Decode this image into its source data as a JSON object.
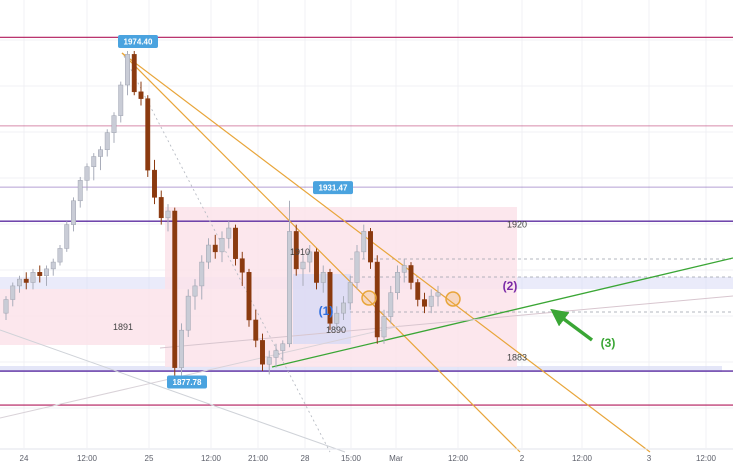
{
  "chart_data": {
    "type": "candlestick",
    "instrument_note": "",
    "x_ticks": [
      "24",
      "12:00",
      "25",
      "12:00",
      "21:00",
      "28",
      "15:00",
      "Mar",
      "12:00",
      "2",
      "12:00",
      "3",
      "12:00"
    ],
    "y_range": [
      1862,
      1982
    ],
    "colors": {
      "bull": "#c9ccd6",
      "bear": "#8b3a0f",
      "magenta_line": "#b0185a",
      "purple_line": "#5b2ca0",
      "trend_green": "#3aa635",
      "trend_orange": "#e8a53a",
      "zone_pink": "#fbe3ea",
      "zone_blue": "#d9dbf5",
      "flag_blue": "#4aa3df",
      "label_blue": "#2f6fe0",
      "label_purple": "#7a2aa6"
    },
    "horizontal_levels": [
      {
        "price": 1979,
        "kind": "magenta"
      },
      {
        "price": 1953,
        "kind": "magenta-light"
      },
      {
        "price": 1935,
        "kind": "purple-light"
      },
      {
        "price": 1925,
        "kind": "purple"
      },
      {
        "price": 1881,
        "kind": "purple"
      },
      {
        "price": 1871,
        "kind": "magenta"
      }
    ],
    "level_labels": [
      {
        "text": "1920",
        "price": 1924
      },
      {
        "text": "1910",
        "price": 1916
      },
      {
        "text": "1891",
        "price": 1894
      },
      {
        "text": "1890",
        "price": 1893
      },
      {
        "text": "1883",
        "price": 1885
      }
    ],
    "price_flags": [
      {
        "text": "1974.40",
        "price": 1974.4
      },
      {
        "text": "1931.47",
        "price": 1931.47
      },
      {
        "text": "1877.78",
        "price": 1877.78
      }
    ],
    "annotations": [
      {
        "text": "(1)",
        "color_key": "label_blue"
      },
      {
        "text": "(2)",
        "color_key": "label_purple"
      },
      {
        "text": "(3)",
        "color_key": "trend_green"
      }
    ],
    "candles": [
      [
        1898,
        1903,
        1896,
        1902
      ],
      [
        1902,
        1907,
        1900,
        1906
      ],
      [
        1906,
        1909,
        1904,
        1908
      ],
      [
        1908,
        1910,
        1905,
        1907
      ],
      [
        1907,
        1911,
        1905,
        1910
      ],
      [
        1910,
        1912,
        1907,
        1909
      ],
      [
        1909,
        1912,
        1906,
        1911
      ],
      [
        1911,
        1914,
        1909,
        1913
      ],
      [
        1913,
        1918,
        1912,
        1917
      ],
      [
        1917,
        1925,
        1916,
        1924
      ],
      [
        1924,
        1932,
        1922,
        1931
      ],
      [
        1931,
        1938,
        1929,
        1937
      ],
      [
        1937,
        1942,
        1934,
        1941
      ],
      [
        1941,
        1945,
        1937,
        1944
      ],
      [
        1944,
        1947,
        1940,
        1946
      ],
      [
        1946,
        1952,
        1944,
        1951
      ],
      [
        1951,
        1957,
        1948,
        1956
      ],
      [
        1956,
        1966,
        1954,
        1965
      ],
      [
        1965,
        1975,
        1962,
        1974
      ],
      [
        1974,
        1975,
        1962,
        1963
      ],
      [
        1963,
        1966,
        1959,
        1961
      ],
      [
        1961,
        1962,
        1938,
        1940
      ],
      [
        1940,
        1943,
        1930,
        1932
      ],
      [
        1932,
        1934,
        1924,
        1926
      ],
      [
        1926,
        1930,
        1922,
        1928
      ],
      [
        1928,
        1929,
        1878,
        1882
      ],
      [
        1882,
        1895,
        1879,
        1893
      ],
      [
        1893,
        1905,
        1891,
        1903
      ],
      [
        1903,
        1908,
        1899,
        1906
      ],
      [
        1906,
        1915,
        1902,
        1913
      ],
      [
        1913,
        1920,
        1911,
        1918
      ],
      [
        1918,
        1921,
        1914,
        1916
      ],
      [
        1916,
        1922,
        1913,
        1920
      ],
      [
        1920,
        1925,
        1917,
        1923
      ],
      [
        1923,
        1924,
        1912,
        1914
      ],
      [
        1914,
        1916,
        1906,
        1910
      ],
      [
        1910,
        1911,
        1894,
        1896
      ],
      [
        1896,
        1899,
        1888,
        1890
      ],
      [
        1890,
        1892,
        1881,
        1883
      ],
      [
        1883,
        1887,
        1880,
        1885
      ],
      [
        1885,
        1889,
        1882,
        1887
      ],
      [
        1887,
        1890,
        1884,
        1889
      ],
      [
        1889,
        1931,
        1888,
        1922
      ],
      [
        1922,
        1924,
        1909,
        1911
      ],
      [
        1911,
        1915,
        1906,
        1913
      ],
      [
        1913,
        1918,
        1910,
        1916
      ],
      [
        1916,
        1917,
        1905,
        1907
      ],
      [
        1907,
        1912,
        1904,
        1910
      ],
      [
        1910,
        1911,
        1893,
        1895
      ],
      [
        1895,
        1900,
        1893,
        1898
      ],
      [
        1898,
        1903,
        1896,
        1901
      ],
      [
        1901,
        1909,
        1899,
        1907
      ],
      [
        1907,
        1918,
        1905,
        1916
      ],
      [
        1916,
        1924,
        1914,
        1922
      ],
      [
        1922,
        1923,
        1911,
        1913
      ],
      [
        1913,
        1915,
        1889,
        1891
      ],
      [
        1891,
        1899,
        1889,
        1897
      ],
      [
        1897,
        1906,
        1895,
        1904
      ],
      [
        1904,
        1912,
        1902,
        1910
      ],
      [
        1910,
        1914,
        1907,
        1912
      ],
      [
        1912,
        1913,
        1905,
        1907
      ],
      [
        1907,
        1908,
        1900,
        1902
      ],
      [
        1902,
        1904,
        1898,
        1900
      ],
      [
        1900,
        1905,
        1898,
        1903
      ],
      [
        1903,
        1906,
        1900,
        1904
      ]
    ]
  }
}
